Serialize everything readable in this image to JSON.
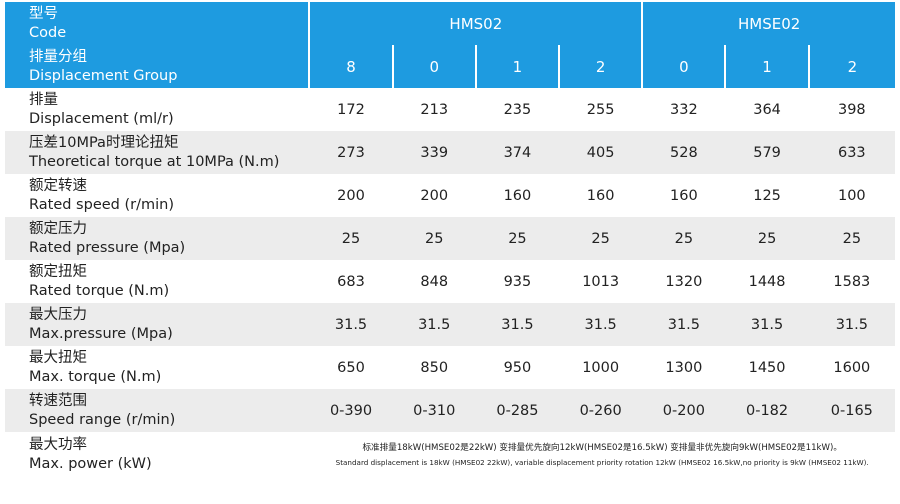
{
  "header": {
    "code_label_cn": "型号",
    "code_label_en": "Code",
    "groups": [
      "HMS02",
      "HMSE02"
    ],
    "group_label_cn": "排量分组",
    "group_label_en": "Displacement Group",
    "group_values": [
      "8",
      "0",
      "1",
      "2",
      "0",
      "1",
      "2"
    ]
  },
  "rows": [
    {
      "cn": "排量",
      "en": "Displacement (ml/r)",
      "values": [
        "172",
        "213",
        "235",
        "255",
        "332",
        "364",
        "398"
      ]
    },
    {
      "cn": "压差10MPa时理论扭矩",
      "en": "Theoretical torque at 10MPa (N.m)",
      "values": [
        "273",
        "339",
        "374",
        "405",
        "528",
        "579",
        "633"
      ]
    },
    {
      "cn": "额定转速",
      "en": "Rated speed (r/min)",
      "values": [
        "200",
        "200",
        "160",
        "160",
        "160",
        "125",
        "100"
      ]
    },
    {
      "cn": "额定压力",
      "en": "Rated pressure (Mpa)",
      "values": [
        "25",
        "25",
        "25",
        "25",
        "25",
        "25",
        "25"
      ]
    },
    {
      "cn": "额定扭矩",
      "en": "Rated torque (N.m)",
      "values": [
        "683",
        "848",
        "935",
        "1013",
        "1320",
        "1448",
        "1583"
      ]
    },
    {
      "cn": "最大压力",
      "en": "Max.pressure (Mpa)",
      "values": [
        "31.5",
        "31.5",
        "31.5",
        "31.5",
        "31.5",
        "31.5",
        "31.5"
      ]
    },
    {
      "cn": "最大扭矩",
      "en": "Max. torque (N.m)",
      "values": [
        "650",
        "850",
        "950",
        "1000",
        "1300",
        "1450",
        "1600"
      ]
    },
    {
      "cn": "转速范围",
      "en": "Speed range (r/min)",
      "values": [
        "0-390",
        "0-310",
        "0-285",
        "0-260",
        "0-200",
        "0-182",
        "0-165"
      ]
    }
  ],
  "max_power": {
    "cn": "最大功率",
    "en": "Max. power (kW)",
    "note_cn": "标准排量18kW(HMSE02是22kW)   变排量优先旋向12kW(HMSE02是16.5kW)   变排量非优先旋向9kW(HMSE02是11kW)。",
    "note_en": "Standard displacement is 18kW (HMSE02 22kW), variable displacement priority rotation 12kW (HMSE02 16.5kW,no priority is 9kW (HMSE02 11kW)."
  },
  "colors": {
    "header_bg": "#1e9be0",
    "shade_bg": "#ececec"
  }
}
